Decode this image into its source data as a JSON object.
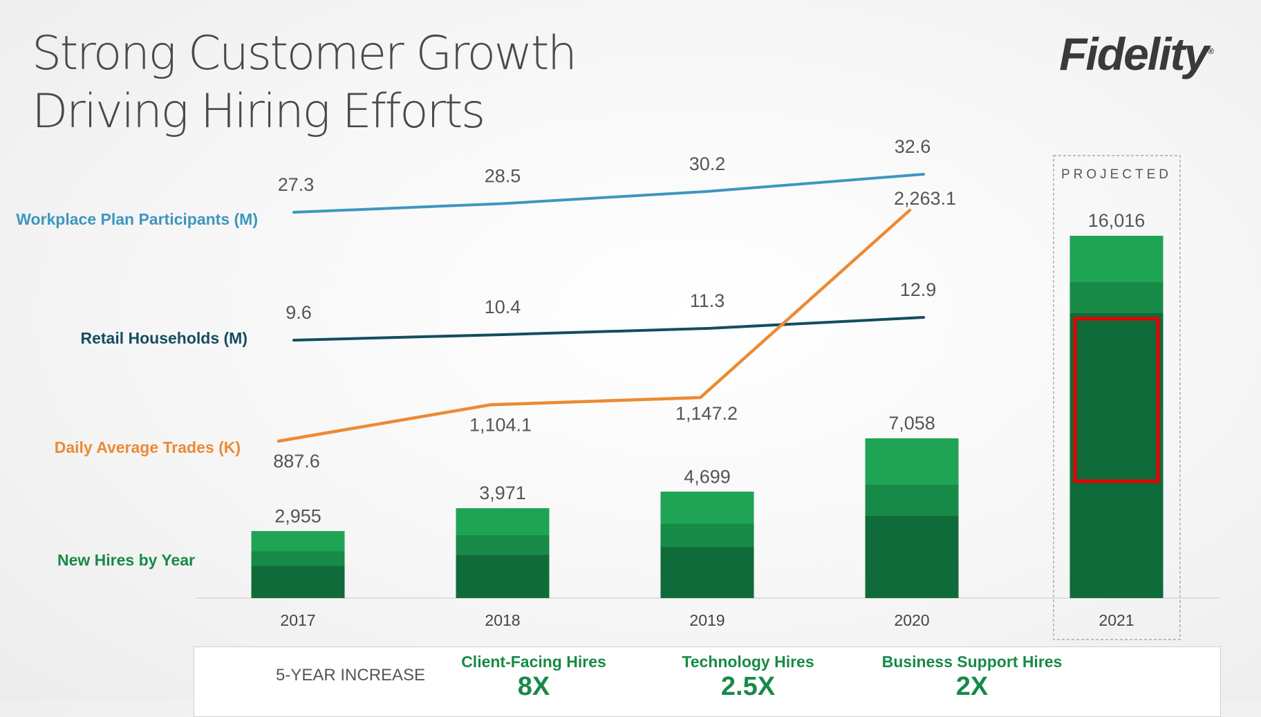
{
  "header": {
    "title_line1": "Strong Customer Growth",
    "title_line2": "Driving Hiring Efforts",
    "logo_text": "Fidelity"
  },
  "projected_label": "PROJECTED",
  "chart_data": {
    "type": "bar",
    "categories": [
      "2017",
      "2018",
      "2019",
      "2020",
      "2021"
    ],
    "projected_category": "2021",
    "series": [
      {
        "name": "Workplace Plan Participants (M)",
        "type": "line",
        "color": "#3e96be",
        "values": [
          27.3,
          28.5,
          30.2,
          32.6,
          null
        ],
        "labels": [
          "27.3",
          "28.5",
          "30.2",
          "32.6",
          ""
        ]
      },
      {
        "name": "Retail Households (M)",
        "type": "line",
        "color": "#144d5e",
        "values": [
          9.6,
          10.4,
          11.3,
          12.9,
          null
        ],
        "labels": [
          "9.6",
          "10.4",
          "11.3",
          "12.9",
          ""
        ]
      },
      {
        "name": "Daily Average Trades (K)",
        "type": "line",
        "color": "#ec8a33",
        "values": [
          887.6,
          1104.1,
          1147.2,
          2263.1,
          null
        ],
        "labels": [
          "887.6",
          "1,104.1",
          "1,147.2",
          "2,263.1",
          ""
        ]
      },
      {
        "name": "New Hires by Year",
        "type": "bar",
        "color": "#0f6b3a",
        "values": [
          2955,
          3971,
          4699,
          7058,
          16016
        ],
        "labels": [
          "2,955",
          "3,971",
          "4,699",
          "7,058",
          "16,016"
        ],
        "segment_colors": [
          "#0f6b3a",
          "#178a47",
          "#1fa455"
        ]
      }
    ],
    "colors": {
      "workplace": "#3e96be",
      "retail": "#144d5e",
      "trades": "#ec8a33",
      "hires_label": "#178a47",
      "highlight_box": "#e60000"
    },
    "grid": false,
    "legend": "left"
  },
  "footer": {
    "increase_label": "5-YEAR INCREASE",
    "metrics": [
      {
        "label": "Client-Facing Hires",
        "value": "8X"
      },
      {
        "label": "Technology Hires",
        "value": "2.5X"
      },
      {
        "label": "Business Support Hires",
        "value": "2X"
      }
    ]
  }
}
